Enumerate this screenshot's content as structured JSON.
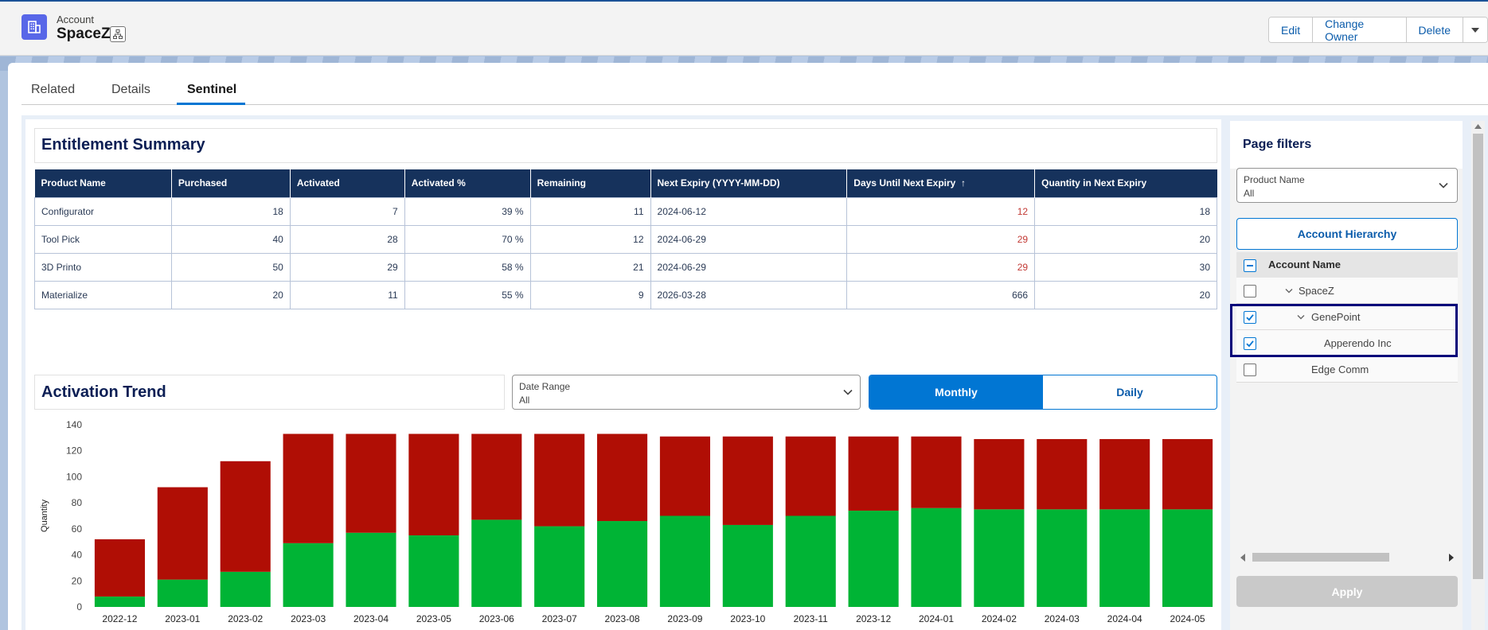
{
  "header": {
    "object_label": "Account",
    "record_name": "SpaceZ",
    "actions": [
      "Edit",
      "Change Owner",
      "Delete"
    ]
  },
  "tabs": [
    {
      "label": "Related",
      "active": false
    },
    {
      "label": "Details",
      "active": false
    },
    {
      "label": "Sentinel",
      "active": true
    }
  ],
  "entitlement_summary": {
    "title": "Entitlement Summary",
    "columns": [
      "Product Name",
      "Purchased",
      "Activated",
      "Activated %",
      "Remaining",
      "Next Expiry (YYYY-MM-DD)",
      "Days Until Next Expiry",
      "Quantity in Next Expiry"
    ],
    "sort_indicator": "↑",
    "rows": [
      [
        "Configurator",
        "18",
        "7",
        "39 %",
        "11",
        "2024-06-12",
        "12",
        "18"
      ],
      [
        "Tool Pick",
        "40",
        "28",
        "70 %",
        "12",
        "2024-06-29",
        "29",
        "20"
      ],
      [
        "3D Printo",
        "50",
        "29",
        "58 %",
        "21",
        "2024-06-29",
        "29",
        "30"
      ],
      [
        "Materialize",
        "20",
        "11",
        "55 %",
        "9",
        "2026-03-28",
        "666",
        "20"
      ]
    ],
    "red_rows": [
      0,
      1,
      2
    ]
  },
  "activation_trend": {
    "title": "Activation Trend",
    "date_range_label": "Date Range",
    "date_range_value": "All",
    "view_options": [
      "Monthly",
      "Daily"
    ],
    "selected_view": "Monthly"
  },
  "chart_data": {
    "type": "bar",
    "stacked": true,
    "categories": [
      "2022-12",
      "2023-01",
      "2023-02",
      "2023-03",
      "2023-04",
      "2023-05",
      "2023-06",
      "2023-07",
      "2023-08",
      "2023-09",
      "2023-10",
      "2023-11",
      "2023-12",
      "2024-01",
      "2024-02",
      "2024-03",
      "2024-04",
      "2024-05"
    ],
    "series": [
      {
        "color": "#00b435",
        "values": [
          8,
          21,
          27,
          49,
          57,
          55,
          67,
          62,
          66,
          70,
          63,
          70,
          74,
          76,
          75,
          75,
          75,
          75
        ]
      },
      {
        "color": "#b00e05",
        "values": [
          44,
          71,
          85,
          84,
          76,
          78,
          66,
          71,
          67,
          61,
          68,
          61,
          57,
          55,
          54,
          54,
          54,
          54
        ]
      }
    ],
    "ylabel": "Quantity",
    "ylim": [
      0,
      140
    ],
    "yticks": [
      0,
      20,
      40,
      60,
      80,
      100,
      120,
      140
    ],
    "grid": false
  },
  "filters": {
    "title": "Page filters",
    "product_name_label": "Product Name",
    "product_name_value": "All",
    "hierarchy_button": "Account Hierarchy",
    "tree_header": "Account Name",
    "tree": [
      {
        "label": "SpaceZ",
        "checked": false,
        "expanded": true
      },
      {
        "label": "GenePoint",
        "checked": true,
        "expanded": true
      },
      {
        "label": "Apperendo Inc",
        "checked": true
      },
      {
        "label": "Edge Comm",
        "checked": false
      }
    ],
    "apply_label": "Apply"
  },
  "colors": {
    "brand": "#0176d3",
    "table_header": "#16325c",
    "title_navy": "#0b1e54",
    "alert_red": "#c23934"
  }
}
